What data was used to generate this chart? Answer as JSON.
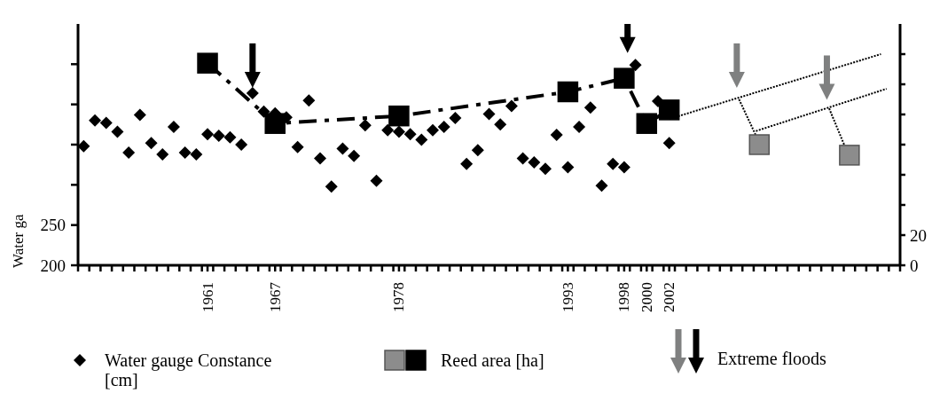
{
  "chart_data": {
    "type": "scatter",
    "ylabel": "Water ga",
    "x": [
      1950,
      1951,
      1952,
      1953,
      1954,
      1955,
      1956,
      1957,
      1958,
      1959,
      1960,
      1961,
      1962,
      1963,
      1964,
      1965,
      1966,
      1967,
      1968,
      1969,
      1970,
      1971,
      1972,
      1973,
      1974,
      1975,
      1976,
      1977,
      1978,
      1979,
      1980,
      1981,
      1982,
      1983,
      1984,
      1985,
      1986,
      1987,
      1988,
      1989,
      1990,
      1991,
      1992,
      1993,
      1994,
      1995,
      1996,
      1997,
      1998,
      1999,
      2000,
      2001,
      2002
    ],
    "series": [
      {
        "type": "scatter",
        "name": "Water gauge Constance [cm]",
        "color": "#000000",
        "marker": "diamond",
        "values": [
          348,
          380,
          377,
          366,
          340,
          387,
          352,
          338,
          372,
          340,
          338,
          363,
          361,
          359,
          350,
          414,
          391,
          389,
          384,
          347,
          405,
          333,
          298,
          345,
          336,
          374,
          305,
          368,
          366,
          363,
          356,
          368,
          372,
          383,
          326,
          343,
          388,
          375,
          398,
          333,
          328,
          320,
          362,
          322,
          372,
          396,
          299,
          326,
          322,
          449,
          null,
          404,
          352
        ]
      },
      {
        "type": "line",
        "name": "Reed area [ha]",
        "axis": "y2",
        "color": "#000000",
        "marker": "square",
        "line_style": "dashed",
        "x": [
          1961,
          1967,
          1978,
          1993,
          1998,
          2000,
          2002
        ],
        "values": [
          134,
          94,
          99,
          115,
          124,
          94,
          103
        ]
      },
      {
        "axis": "y2",
        "color": "#8c8c8c",
        "marker": "square",
        "x": [
          2010,
          2018
        ],
        "values": [
          80,
          73
        ]
      },
      {
        "type": "line",
        "axis": "y2",
        "color": "#000000",
        "marker": "none",
        "line_style": "dotted",
        "x": [
          2002,
          2020.8
        ],
        "values": [
          97,
          140
        ]
      },
      {
        "type": "line",
        "axis": "y2",
        "color": "#000000",
        "marker": "none",
        "line_style": "dotted",
        "x": [
          2008.2,
          2009.7
        ],
        "values": [
          110,
          86
        ]
      },
      {
        "type": "line",
        "axis": "y2",
        "color": "#000000",
        "marker": "none",
        "line_style": "dotted",
        "x": [
          2009.7,
          2021.3
        ],
        "values": [
          89,
          117
        ]
      },
      {
        "type": "line",
        "axis": "y2",
        "color": "#000000",
        "marker": "none",
        "line_style": "dotted",
        "x": [
          2016.2,
          2017.7
        ],
        "values": [
          104,
          77
        ]
      },
      {
        "type": "scatter",
        "name": "Extreme floods",
        "axis": "y2",
        "marker": "triangle",
        "colors": [
          "#000000",
          "#000000",
          "#7f8080",
          "#7f8080"
        ],
        "x": [
          1965,
          1998.3,
          2008,
          2016
        ],
        "values": [
          123,
          146,
          123,
          115
        ]
      }
    ],
    "xlim": [
      1949.5,
      2022.5
    ],
    "xticks": [
      {
        "value": 1949.5,
        "label": null
      },
      {
        "value": 1950.5,
        "label": null
      },
      {
        "value": 1951.5,
        "label": null
      },
      {
        "value": 1952.5,
        "label": null
      },
      {
        "value": 1953.5,
        "label": null
      },
      {
        "value": 1954.5,
        "label": null
      },
      {
        "value": 1955.5,
        "label": null
      },
      {
        "value": 1956.5,
        "label": null
      },
      {
        "value": 1957.5,
        "label": null
      },
      {
        "value": 1958.5,
        "label": null
      },
      {
        "value": 1959.5,
        "label": null
      },
      {
        "value": 1960.5,
        "label": null
      },
      1961,
      {
        "value": 1961.5,
        "label": null
      },
      {
        "value": 1962.5,
        "label": null
      },
      {
        "value": 1963.5,
        "label": null
      },
      {
        "value": 1964.5,
        "label": null
      },
      {
        "value": 1965.5,
        "label": null
      },
      {
        "value": 1966.5,
        "label": null
      },
      1967,
      {
        "value": 1967.5,
        "label": null
      },
      {
        "value": 1968.5,
        "label": null
      },
      {
        "value": 1969.5,
        "label": null
      },
      {
        "value": 1970.5,
        "label": null
      },
      {
        "value": 1971.5,
        "label": null
      },
      {
        "value": 1972.5,
        "label": null
      },
      {
        "value": 1973.5,
        "label": null
      },
      {
        "value": 1974.5,
        "label": null
      },
      {
        "value": 1975.5,
        "label": null
      },
      {
        "value": 1976.5,
        "label": null
      },
      {
        "value": 1977.5,
        "label": null
      },
      1978,
      {
        "value": 1978.5,
        "label": null
      },
      {
        "value": 1979.5,
        "label": null
      },
      {
        "value": 1980.5,
        "label": null
      },
      {
        "value": 1981.5,
        "label": null
      },
      {
        "value": 1982.5,
        "label": null
      },
      {
        "value": 1983.5,
        "label": null
      },
      {
        "value": 1984.5,
        "label": null
      },
      {
        "value": 1985.5,
        "label": null
      },
      {
        "value": 1986.5,
        "label": null
      },
      {
        "value": 1987.5,
        "label": null
      },
      {
        "value": 1988.5,
        "label": null
      },
      {
        "value": 1989.5,
        "label": null
      },
      {
        "value": 1990.5,
        "label": null
      },
      {
        "value": 1991.5,
        "label": null
      },
      {
        "value": 1992.5,
        "label": null
      },
      1993,
      {
        "value": 1993.5,
        "label": null
      },
      {
        "value": 1994.5,
        "label": null
      },
      {
        "value": 1995.5,
        "label": null
      },
      {
        "value": 1996.5,
        "label": null
      },
      {
        "value": 1997.5,
        "label": null
      },
      1998,
      {
        "value": 1998.5,
        "label": null
      },
      {
        "value": 1999.5,
        "label": null
      },
      2000,
      {
        "value": 2000.5,
        "label": null
      },
      {
        "value": 2001.5,
        "label": null
      },
      2002,
      {
        "value": 2002.5,
        "label": null
      },
      {
        "value": 2003.5,
        "label": null
      },
      {
        "value": 2004.5,
        "label": null
      },
      {
        "value": 2005.5,
        "label": null
      },
      {
        "value": 2006.5,
        "label": null
      },
      {
        "value": 2007.5,
        "label": null
      },
      {
        "value": 2008.5,
        "label": null
      },
      {
        "value": 2009.5,
        "label": null
      },
      {
        "value": 2010.5,
        "label": null
      },
      {
        "value": 2011.5,
        "label": null
      },
      {
        "value": 2012.5,
        "label": null
      },
      {
        "value": 2013.5,
        "label": null
      },
      {
        "value": 2014.5,
        "label": null
      },
      {
        "value": 2015.5,
        "label": null
      },
      {
        "value": 2016.5,
        "label": null
      },
      {
        "value": 2017.5,
        "label": null
      },
      {
        "value": 2018.5,
        "label": null
      },
      {
        "value": 2019.5,
        "label": null
      },
      {
        "value": 2020.5,
        "label": null
      },
      {
        "value": 2021.5,
        "label": null
      },
      {
        "value": 2022.5,
        "label": null
      }
    ],
    "ylim": [
      200,
      500
    ],
    "yticks": [
      200,
      250,
      {
        "value": 300,
        "label": null
      },
      {
        "value": 350,
        "label": null
      },
      {
        "value": 400,
        "label": null
      },
      {
        "value": 450,
        "label": null
      }
    ],
    "y2lim": [
      0,
      160
    ],
    "y2ticks": [
      0,
      20,
      {
        "value": 40,
        "label": null
      },
      {
        "value": 60,
        "label": null
      },
      {
        "value": 80,
        "label": null
      },
      {
        "value": 100,
        "label": null
      },
      {
        "value": 120,
        "label": null
      },
      {
        "value": 140,
        "label": null
      }
    ],
    "grid": false,
    "legend": "bottom"
  }
}
